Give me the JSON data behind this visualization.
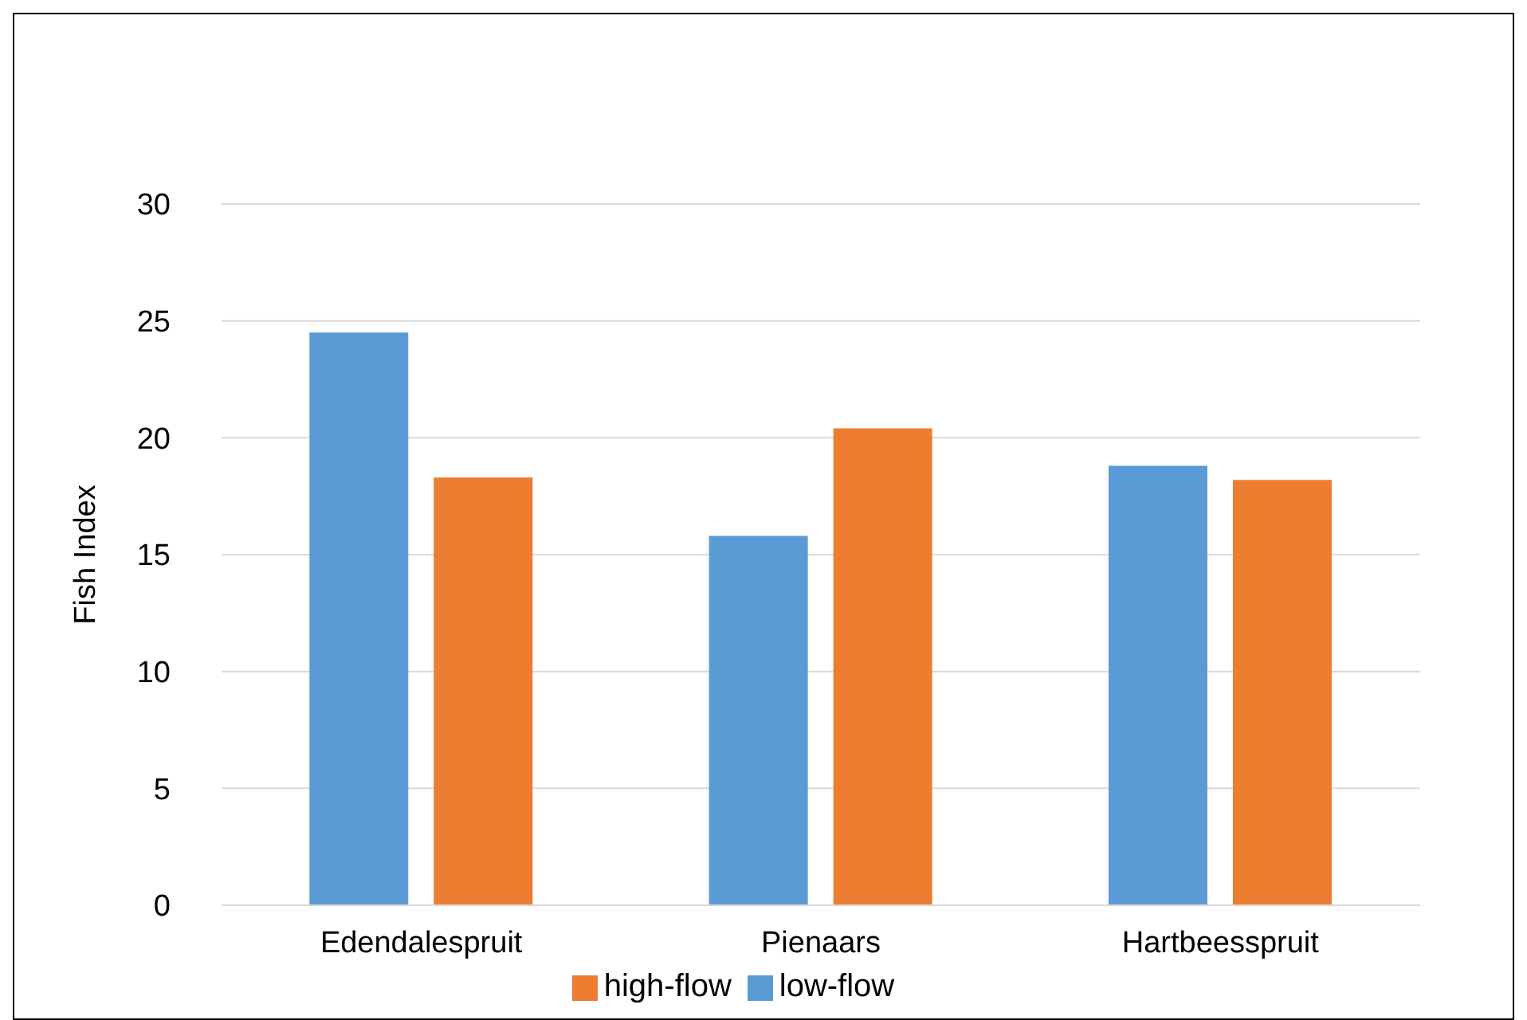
{
  "chart_data": {
    "type": "bar",
    "ylabel": "Fish Index",
    "categories": [
      "Edendalespruit",
      "Pienaars",
      "Hartbeesspruit"
    ],
    "series": [
      {
        "name": "low-flow",
        "color": "#5b9bd5",
        "values": [
          24.5,
          15.8,
          18.8
        ]
      },
      {
        "name": "high-flow",
        "color": "#ed7d31",
        "values": [
          18.3,
          20.4,
          18.2
        ]
      }
    ],
    "ylim": [
      0,
      30
    ],
    "yticks": [
      0,
      5,
      10,
      15,
      20,
      25,
      30
    ],
    "grid": "y",
    "legend": "bottom"
  }
}
